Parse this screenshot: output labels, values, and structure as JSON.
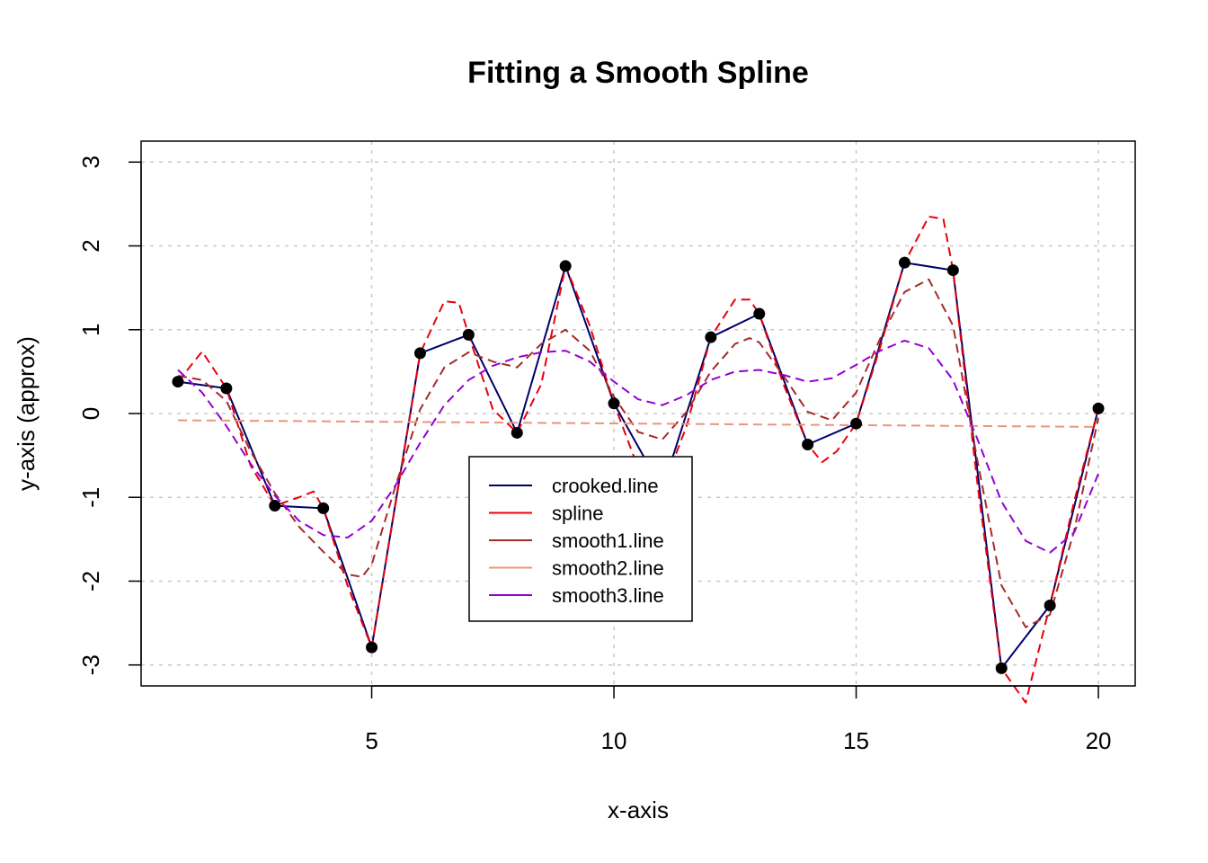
{
  "chart_data": {
    "type": "line",
    "title": "Fitting a Smooth Spline",
    "xlabel": "x-axis",
    "ylabel": "y-axis (approx)",
    "xlim": [
      0.24,
      20.76
    ],
    "ylim": [
      -3.25,
      3.25
    ],
    "x_ticks": [
      5,
      10,
      15,
      20
    ],
    "x_tick_labels": [
      "5",
      "10",
      "15",
      "20"
    ],
    "y_ticks": [
      -3,
      -2,
      -1,
      0,
      1,
      2,
      3
    ],
    "y_tick_labels": [
      "-3",
      "-2",
      "-1",
      "0",
      "1",
      "2",
      "3"
    ],
    "grid": true,
    "legend_position": "center",
    "points": {
      "x": [
        1,
        2,
        3,
        4,
        5,
        6,
        7,
        8,
        9,
        10,
        11,
        12,
        13,
        14,
        15,
        16,
        17,
        18,
        19,
        20
      ],
      "y": [
        0.38,
        0.3,
        -1.1,
        -1.13,
        -2.79,
        0.72,
        0.94,
        -0.23,
        1.76,
        0.12,
        -0.91,
        0.91,
        1.19,
        -0.37,
        -0.12,
        1.8,
        1.71,
        -3.04,
        -2.29,
        0.06
      ],
      "color": "#000000"
    },
    "series": [
      {
        "name": "crooked.line",
        "color": "#000066",
        "style": "solid",
        "x": [
          1,
          2,
          3,
          4,
          5,
          6,
          7,
          8,
          9,
          10,
          11,
          12,
          13,
          14,
          15,
          16,
          17,
          18,
          19,
          20
        ],
        "y": [
          0.38,
          0.3,
          -1.1,
          -1.13,
          -2.79,
          0.72,
          0.94,
          -0.23,
          1.76,
          0.12,
          -0.91,
          0.91,
          1.19,
          -0.37,
          -0.12,
          1.8,
          1.71,
          -3.04,
          -2.29,
          0.06
        ]
      },
      {
        "name": "spline",
        "color": "#e8000b",
        "style": "dashed",
        "x": [
          1,
          1.5,
          2,
          2.5,
          3,
          3.5,
          3.8,
          4,
          4.5,
          5,
          5.5,
          6,
          6.5,
          6.8,
          7,
          7.5,
          8,
          8.5,
          9,
          9.5,
          10,
          10.5,
          11,
          11.5,
          12,
          12.5,
          12.8,
          13,
          13.5,
          14,
          14.3,
          14.6,
          15,
          15.5,
          16,
          16.5,
          16.8,
          17,
          17.5,
          18,
          18.5,
          19,
          19.5,
          20
        ],
        "y": [
          0.38,
          0.74,
          0.3,
          -0.62,
          -1.1,
          -1.0,
          -0.93,
          -1.13,
          -2.05,
          -2.79,
          -1.05,
          0.72,
          1.34,
          1.32,
          0.94,
          0.05,
          -0.23,
          0.35,
          1.76,
          1.05,
          0.12,
          -0.65,
          -0.91,
          -0.15,
          0.91,
          1.36,
          1.36,
          1.19,
          0.35,
          -0.37,
          -0.58,
          -0.45,
          -0.12,
          0.8,
          1.8,
          2.35,
          2.32,
          1.71,
          -0.82,
          -3.04,
          -3.45,
          -2.29,
          -1.05,
          0.06
        ]
      },
      {
        "name": "smooth1.line",
        "color": "#a52a2a",
        "style": "dashed",
        "x": [
          1,
          1.5,
          2,
          2.5,
          3,
          3.5,
          4,
          4.5,
          4.8,
          5,
          5.5,
          6,
          6.5,
          7,
          7.5,
          8,
          8.5,
          9,
          9.5,
          10,
          10.5,
          11,
          11.5,
          12,
          12.5,
          12.8,
          13,
          13.5,
          14,
          14.5,
          15,
          15.5,
          16,
          16.5,
          17,
          17.5,
          18,
          18.5,
          19,
          19.5,
          20
        ],
        "y": [
          0.45,
          0.4,
          0.15,
          -0.45,
          -0.95,
          -1.35,
          -1.65,
          -1.92,
          -1.95,
          -1.8,
          -0.85,
          0.05,
          0.55,
          0.73,
          0.62,
          0.55,
          0.83,
          1.0,
          0.75,
          0.2,
          -0.22,
          -0.31,
          0.02,
          0.5,
          0.83,
          0.9,
          0.85,
          0.45,
          0.02,
          -0.08,
          0.25,
          0.9,
          1.45,
          1.6,
          1.05,
          -0.55,
          -2.05,
          -2.55,
          -2.4,
          -1.4,
          -0.05
        ]
      },
      {
        "name": "smooth2.line",
        "color": "#e9967a",
        "style": "dashed",
        "x": [
          1,
          20
        ],
        "y": [
          -0.08,
          -0.16
        ]
      },
      {
        "name": "smooth3.line",
        "color": "#9400d3",
        "style": "dashed",
        "x": [
          1,
          1.5,
          2,
          2.5,
          3,
          3.5,
          4,
          4.5,
          5,
          5.5,
          6,
          6.5,
          7,
          7.5,
          8,
          8.5,
          9,
          9.5,
          10,
          10.5,
          11,
          11.5,
          12,
          12.5,
          13,
          13.5,
          14,
          14.5,
          15,
          15.5,
          16,
          16.5,
          17,
          17.5,
          18,
          18.5,
          19,
          19.5,
          20
        ],
        "y": [
          0.52,
          0.25,
          -0.15,
          -0.6,
          -0.98,
          -1.28,
          -1.45,
          -1.48,
          -1.28,
          -0.85,
          -0.35,
          0.1,
          0.4,
          0.57,
          0.67,
          0.73,
          0.75,
          0.62,
          0.38,
          0.17,
          0.1,
          0.22,
          0.4,
          0.5,
          0.52,
          0.46,
          0.38,
          0.42,
          0.58,
          0.75,
          0.87,
          0.78,
          0.4,
          -0.3,
          -1.05,
          -1.52,
          -1.66,
          -1.42,
          -0.72
        ]
      }
    ]
  }
}
